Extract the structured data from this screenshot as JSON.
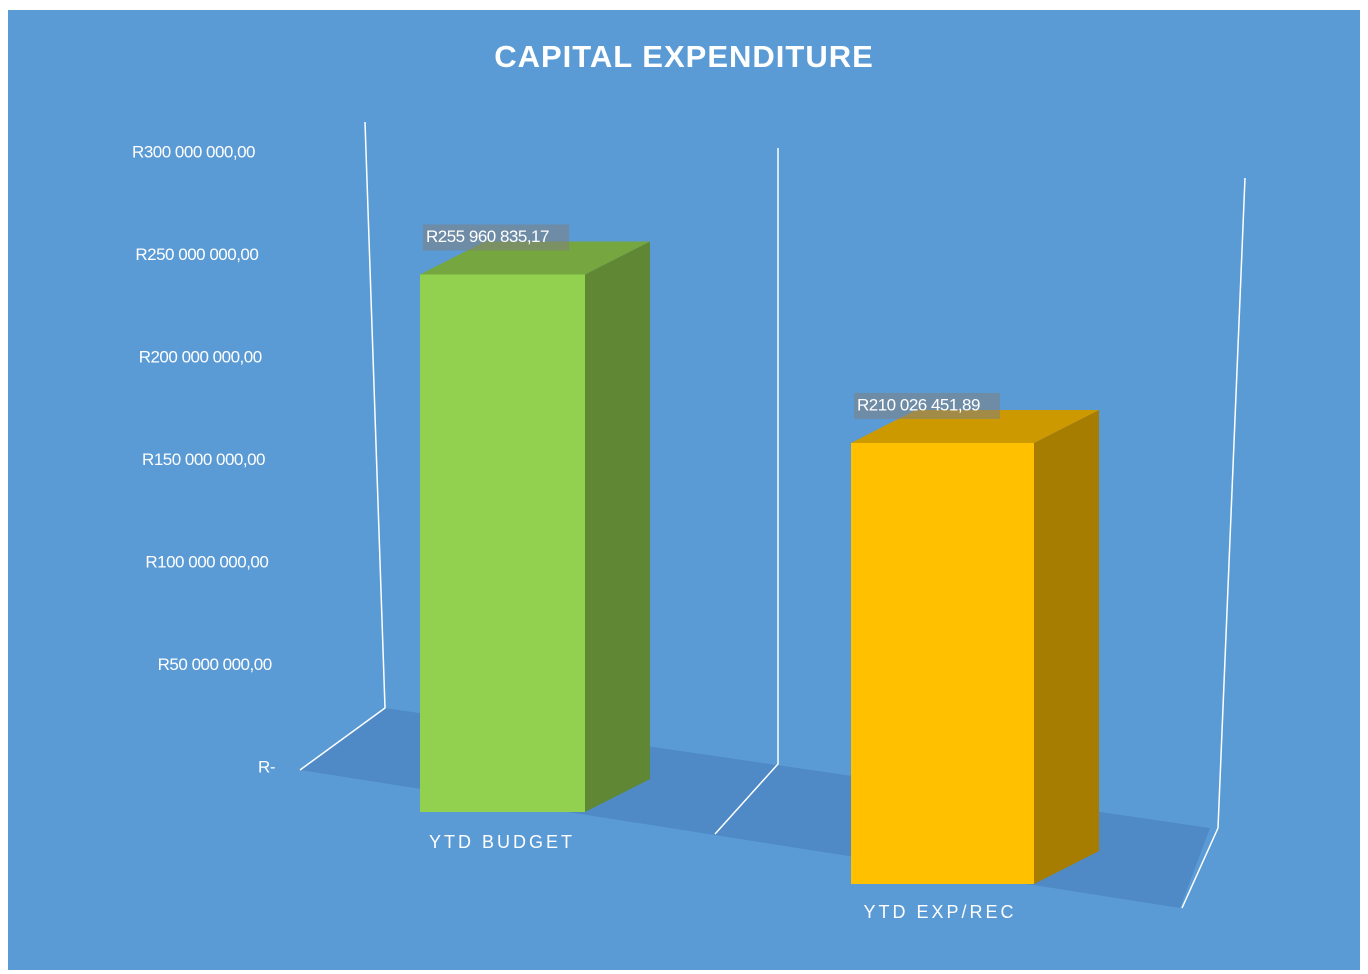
{
  "chart_data": {
    "type": "bar3d",
    "title": "CAPITAL EXPENDITURE",
    "categories": [
      "YTD BUDGET",
      "YTD EXP/REC"
    ],
    "values": [
      255960835.17,
      210026451.89
    ],
    "value_labels": [
      "R255 960 835,17",
      "R210 026 451,89"
    ],
    "colors": [
      "#92d050",
      "#ffc000"
    ],
    "ylim": [
      0,
      300000000
    ],
    "yticks": [
      {
        "value": 0,
        "label": "R-"
      },
      {
        "value": 50000000,
        "label": "R50 000 000,00"
      },
      {
        "value": 100000000,
        "label": "R100 000 000,00"
      },
      {
        "value": 150000000,
        "label": "R150 000 000,00"
      },
      {
        "value": 200000000,
        "label": "R200 000 000,00"
      },
      {
        "value": 250000000,
        "label": "R250 000 000,00"
      },
      {
        "value": 300000000,
        "label": "R300 000 000,00"
      }
    ]
  }
}
